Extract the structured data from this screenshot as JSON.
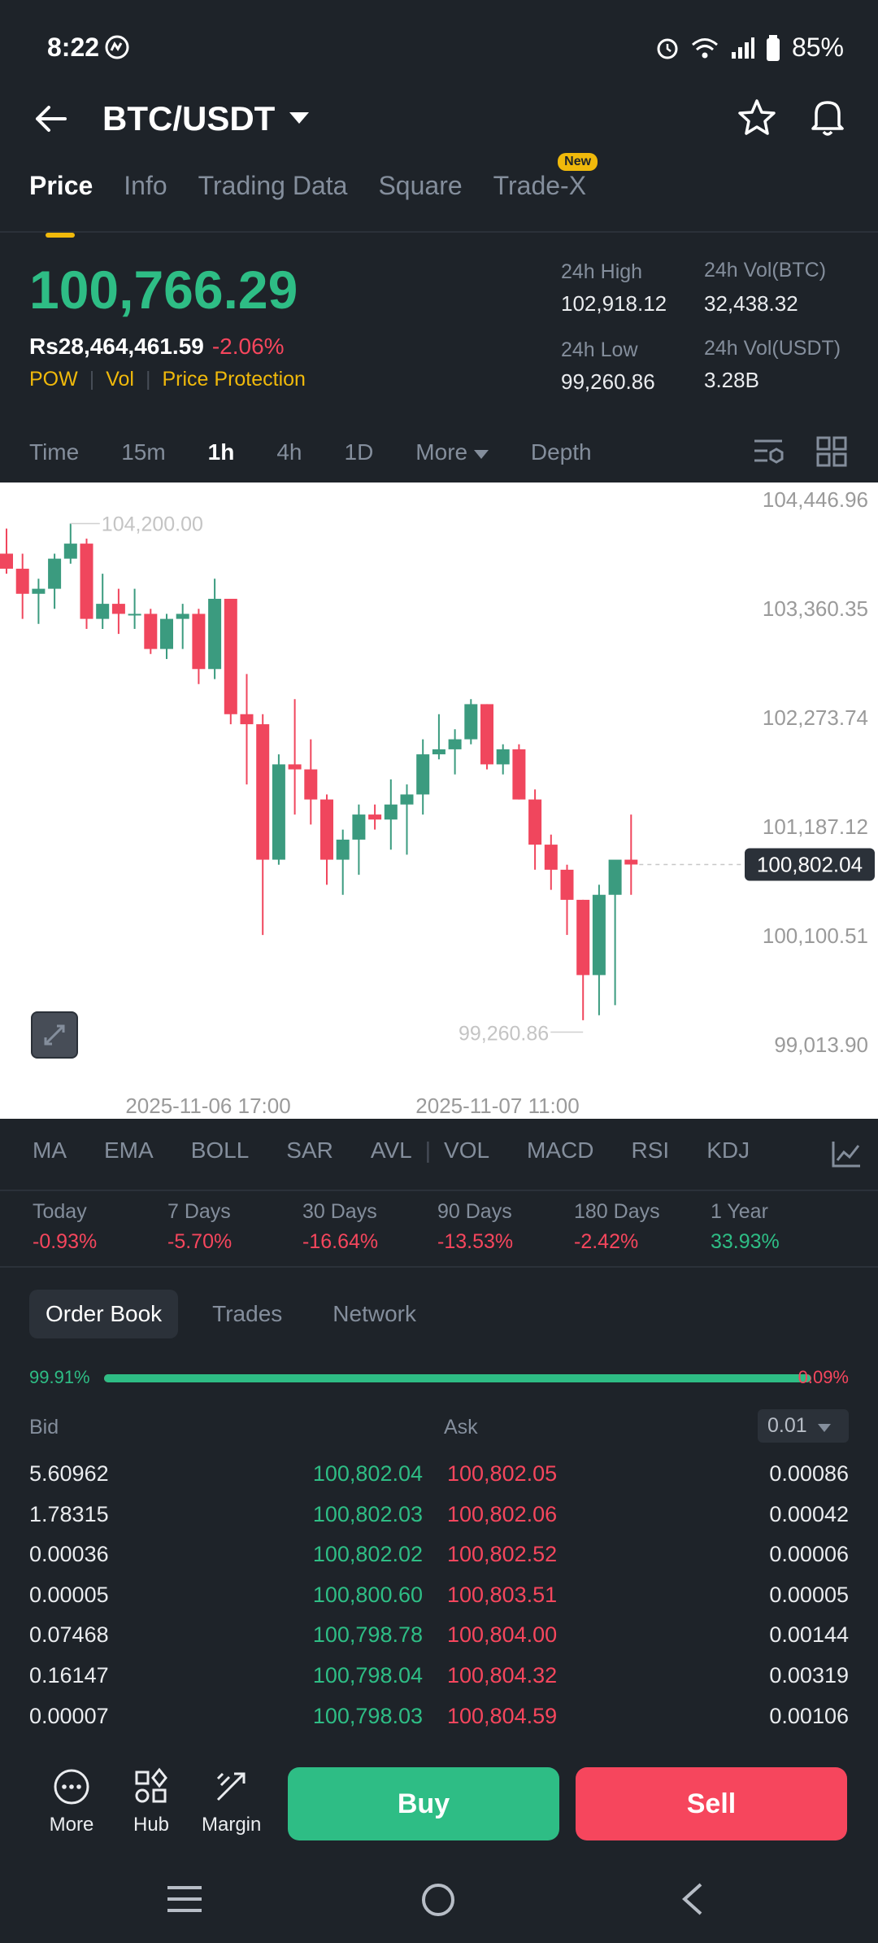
{
  "status": {
    "time": "8:22",
    "battery": "85%"
  },
  "header": {
    "title": "BTC/USDT"
  },
  "tabs": [
    {
      "label": "Price"
    },
    {
      "label": "Info"
    },
    {
      "label": "Trading Data"
    },
    {
      "label": "Square"
    },
    {
      "label": "Trade-X",
      "badge": "New"
    }
  ],
  "ticker": {
    "price": "100,766.29",
    "fiat": "Rs28,464,461.59",
    "change": "-2.06%",
    "tags": [
      "POW",
      "Vol",
      "Price Protection"
    ],
    "stats": {
      "high_label": "24h High",
      "high": "102,918.12",
      "vol_btc_label": "24h Vol(BTC)",
      "vol_btc": "32,438.32",
      "low_label": "24h Low",
      "low": "99,260.86",
      "vol_usdt_label": "24h Vol(USDT)",
      "vol_usdt": "3.28B"
    }
  },
  "timeframes": {
    "time": "Time",
    "m15": "15m",
    "h1": "1h",
    "h4": "4h",
    "d1": "1D",
    "more": "More",
    "depth": "Depth"
  },
  "chart_data": {
    "type": "candlestick",
    "y_ticks": [
      "104,446.96",
      "103,360.35",
      "102,273.74",
      "101,187.12",
      "100,100.51",
      "99,013.90"
    ],
    "x_ticks": [
      "2025-11-06 17:00",
      "2025-11-07 11:00"
    ],
    "high_marker": "104,200.00",
    "low_marker": "99,260.86",
    "current": "100,802.04",
    "ylim": [
      99013.9,
      104446.96
    ],
    "candles": [
      {
        "o": 103900,
        "h": 104150,
        "l": 103700,
        "c": 103750
      },
      {
        "o": 103750,
        "h": 103900,
        "l": 103250,
        "c": 103500
      },
      {
        "o": 103500,
        "h": 103650,
        "l": 103200,
        "c": 103550
      },
      {
        "o": 103550,
        "h": 103900,
        "l": 103350,
        "c": 103850
      },
      {
        "o": 103850,
        "h": 104200,
        "l": 103800,
        "c": 104000
      },
      {
        "o": 104000,
        "h": 104050,
        "l": 103150,
        "c": 103250
      },
      {
        "o": 103250,
        "h": 103700,
        "l": 103150,
        "c": 103400
      },
      {
        "o": 103400,
        "h": 103550,
        "l": 103100,
        "c": 103300
      },
      {
        "o": 103300,
        "h": 103550,
        "l": 103150,
        "c": 103300
      },
      {
        "o": 103300,
        "h": 103350,
        "l": 102900,
        "c": 102950
      },
      {
        "o": 102950,
        "h": 103300,
        "l": 102850,
        "c": 103250
      },
      {
        "o": 103250,
        "h": 103400,
        "l": 102950,
        "c": 103300
      },
      {
        "o": 103300,
        "h": 103350,
        "l": 102600,
        "c": 102750
      },
      {
        "o": 102750,
        "h": 103650,
        "l": 102650,
        "c": 103450
      },
      {
        "o": 103450,
        "h": 103450,
        "l": 102200,
        "c": 102300
      },
      {
        "o": 102300,
        "h": 102700,
        "l": 101600,
        "c": 102200
      },
      {
        "o": 102200,
        "h": 102300,
        "l": 100100,
        "c": 100850
      },
      {
        "o": 100850,
        "h": 101900,
        "l": 100800,
        "c": 101800
      },
      {
        "o": 101800,
        "h": 102450,
        "l": 101300,
        "c": 101750
      },
      {
        "o": 101750,
        "h": 102050,
        "l": 101200,
        "c": 101450
      },
      {
        "o": 101450,
        "h": 101500,
        "l": 100600,
        "c": 100850
      },
      {
        "o": 100850,
        "h": 101150,
        "l": 100500,
        "c": 101050
      },
      {
        "o": 101050,
        "h": 101400,
        "l": 100700,
        "c": 101300
      },
      {
        "o": 101300,
        "h": 101400,
        "l": 101150,
        "c": 101250
      },
      {
        "o": 101250,
        "h": 101650,
        "l": 100950,
        "c": 101400
      },
      {
        "o": 101400,
        "h": 101600,
        "l": 100900,
        "c": 101500
      },
      {
        "o": 101500,
        "h": 102050,
        "l": 101300,
        "c": 101900
      },
      {
        "o": 101900,
        "h": 102300,
        "l": 101850,
        "c": 101950
      },
      {
        "o": 101950,
        "h": 102150,
        "l": 101700,
        "c": 102050
      },
      {
        "o": 102050,
        "h": 102450,
        "l": 102000,
        "c": 102400
      },
      {
        "o": 102400,
        "h": 102400,
        "l": 101750,
        "c": 101800
      },
      {
        "o": 101800,
        "h": 102000,
        "l": 101700,
        "c": 101950
      },
      {
        "o": 101950,
        "h": 102000,
        "l": 101450,
        "c": 101450
      },
      {
        "o": 101450,
        "h": 101550,
        "l": 100750,
        "c": 101000
      },
      {
        "o": 101000,
        "h": 101100,
        "l": 100550,
        "c": 100750
      },
      {
        "o": 100750,
        "h": 100800,
        "l": 100100,
        "c": 100450
      },
      {
        "o": 100450,
        "h": 100450,
        "l": 99250,
        "c": 99700
      },
      {
        "o": 99700,
        "h": 100600,
        "l": 99300,
        "c": 100500
      },
      {
        "o": 100500,
        "h": 100800,
        "l": 99400,
        "c": 100850
      },
      {
        "o": 100850,
        "h": 101300,
        "l": 100500,
        "c": 100802
      }
    ]
  },
  "indicators": [
    "MA",
    "EMA",
    "BOLL",
    "SAR",
    "AVL",
    "VOL",
    "MACD",
    "RSI",
    "KDJ"
  ],
  "changes": [
    {
      "label": "Today",
      "value": "-0.93%",
      "dir": "down"
    },
    {
      "label": "7 Days",
      "value": "-5.70%",
      "dir": "down"
    },
    {
      "label": "30 Days",
      "value": "-16.64%",
      "dir": "down"
    },
    {
      "label": "90 Days",
      "value": "-13.53%",
      "dir": "down"
    },
    {
      "label": "180 Days",
      "value": "-2.42%",
      "dir": "down"
    },
    {
      "label": "1 Year",
      "value": "33.93%",
      "dir": "up"
    }
  ],
  "orderbook_tabs": {
    "book": "Order Book",
    "trades": "Trades",
    "network": "Network"
  },
  "ratio": {
    "bid": "99.91%",
    "ask": "0.09%",
    "bid_fraction": 0.9991
  },
  "orderbook": {
    "bid_label": "Bid",
    "ask_label": "Ask",
    "precision": "0.01",
    "rows": [
      {
        "bid_qty": "5.60962",
        "bid_price": "100,802.04",
        "ask_price": "100,802.05",
        "ask_qty": "0.00086",
        "depth": 0.34
      },
      {
        "bid_qty": "1.78315",
        "bid_price": "100,802.03",
        "ask_price": "100,802.06",
        "ask_qty": "0.00042",
        "depth": 0.44
      },
      {
        "bid_qty": "0.00036",
        "bid_price": "100,802.02",
        "ask_price": "100,802.52",
        "ask_qty": "0.00006",
        "depth": 0.44
      },
      {
        "bid_qty": "0.00005",
        "bid_price": "100,800.60",
        "ask_price": "100,803.51",
        "ask_qty": "0.00005",
        "depth": 0.44
      },
      {
        "bid_qty": "0.07468",
        "bid_price": "100,798.78",
        "ask_price": "100,804.00",
        "ask_qty": "0.00144",
        "depth": 0.45
      },
      {
        "bid_qty": "0.16147",
        "bid_price": "100,798.04",
        "ask_price": "100,804.32",
        "ask_qty": "0.00319",
        "depth": 0.47
      },
      {
        "bid_qty": "0.00007",
        "bid_price": "100,798.03",
        "ask_price": "100,804.59",
        "ask_qty": "0.00106",
        "depth": 0.47
      }
    ]
  },
  "bottom": {
    "more": "More",
    "hub": "Hub",
    "margin": "Margin",
    "buy": "Buy",
    "sell": "Sell"
  },
  "colors": {
    "up": "#2ebd85",
    "down": "#f6465d",
    "accent": "#f0b90b"
  }
}
